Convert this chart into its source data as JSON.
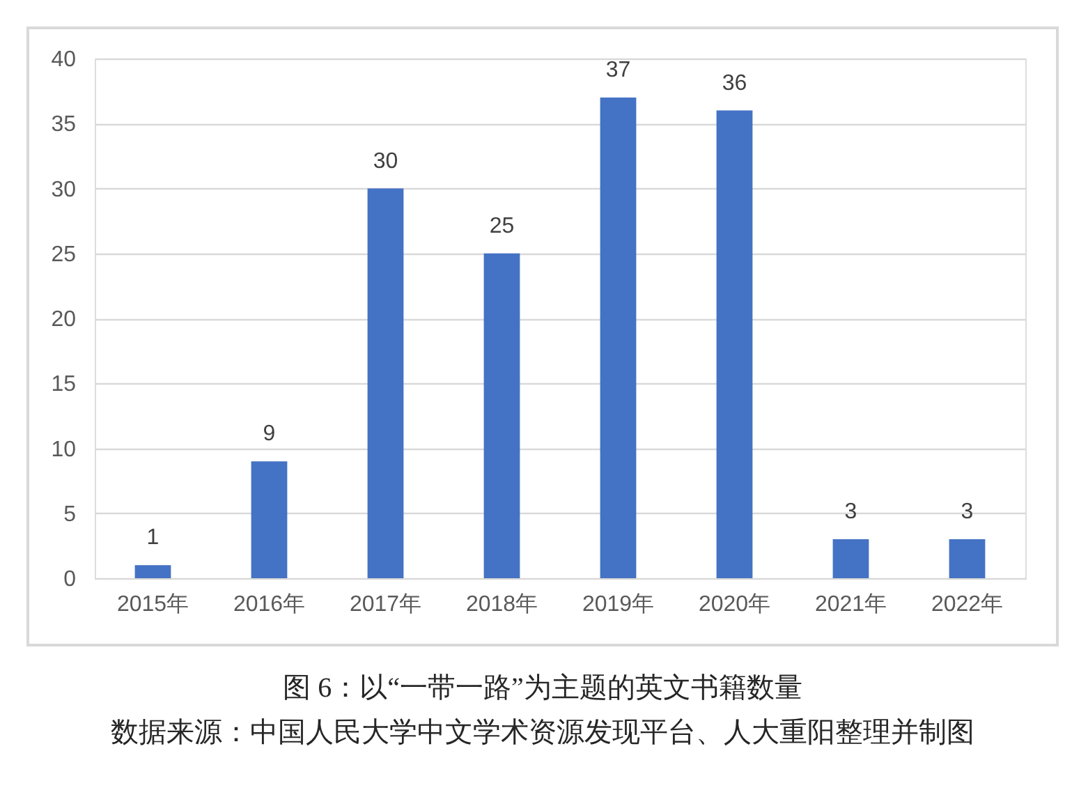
{
  "chart_data": {
    "type": "bar",
    "title": "图 6：以“一带一路”为主题的英文书籍数量",
    "annotations": [
      "数据来源：中国人民大学中文学术资源发现平台、人大重阳整理并制图"
    ],
    "categories": [
      "2015年",
      "2016年",
      "2017年",
      "2018年",
      "2019年",
      "2020年",
      "2021年",
      "2022年"
    ],
    "values": [
      1,
      9,
      30,
      25,
      37,
      36,
      3,
      3
    ],
    "color": "#4472c4",
    "ylim": [
      0,
      40
    ],
    "yticks": [
      0,
      5,
      10,
      15,
      20,
      25,
      30,
      35,
      40
    ],
    "grid": "y",
    "data_labels": true
  }
}
